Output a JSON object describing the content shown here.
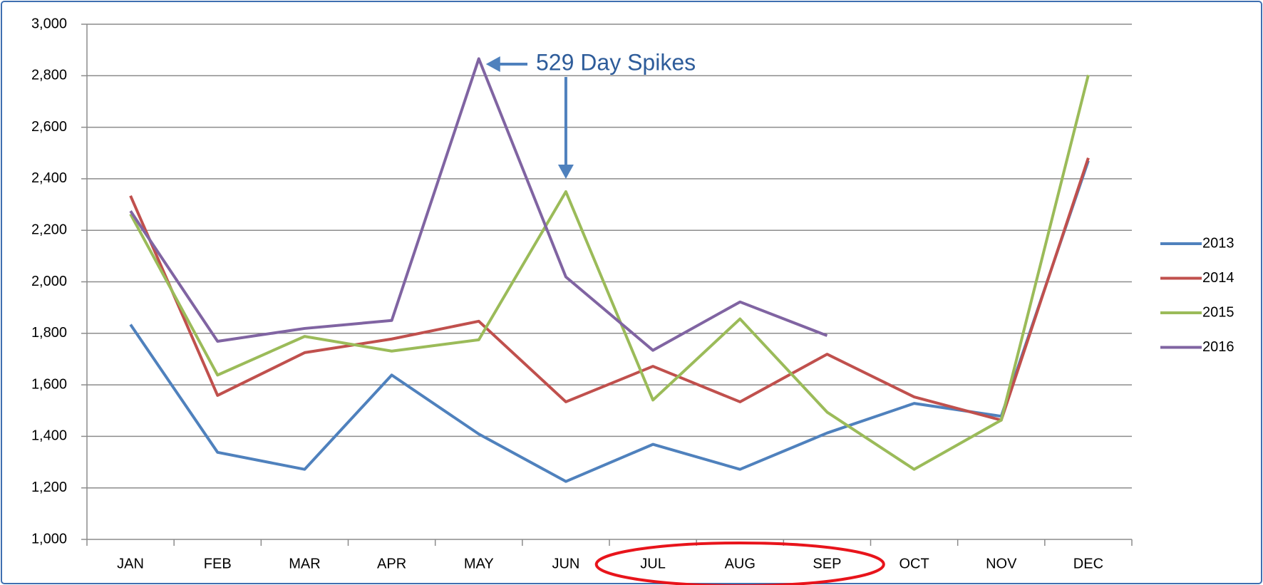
{
  "chart_data": {
    "type": "line",
    "annotation": "529 Day Spikes",
    "categories": [
      "JAN",
      "FEB",
      "MAR",
      "APR",
      "MAY",
      "JUN",
      "JUL",
      "AUG",
      "SEP",
      "OCT",
      "NOV",
      "DEC"
    ],
    "series": [
      {
        "name": "2013",
        "color": "#4f81bd",
        "values": [
          1834,
          1338,
          1272,
          1638,
          1409,
          1225,
          1369,
          1272,
          1413,
          1528,
          1478,
          2470
        ]
      },
      {
        "name": "2014",
        "color": "#c0504d",
        "values": [
          2334,
          1559,
          1725,
          1778,
          1847,
          1534,
          1672,
          1534,
          1719,
          1553,
          1463,
          2481
        ]
      },
      {
        "name": "2015",
        "color": "#9bbb59",
        "values": [
          2263,
          1638,
          1788,
          1731,
          1775,
          2350,
          1541,
          1856,
          1494,
          1272,
          1463,
          2803
        ]
      },
      {
        "name": "2016",
        "color": "#8064a2",
        "values": [
          2275,
          1769,
          1819,
          1850,
          2866,
          2019,
          1734,
          1922,
          1791,
          null,
          null,
          null
        ]
      }
    ],
    "ylim": [
      1000,
      3000
    ],
    "yticks": [
      {
        "value": 1000,
        "label": "1,000"
      },
      {
        "value": 1200,
        "label": "1,200"
      },
      {
        "value": 1400,
        "label": "1,400"
      },
      {
        "value": 1600,
        "label": "1,600"
      },
      {
        "value": 1800,
        "label": "1,800"
      },
      {
        "value": 2000,
        "label": "2,000"
      },
      {
        "value": 2200,
        "label": "2,200"
      },
      {
        "value": 2400,
        "label": "2,400"
      },
      {
        "value": 2600,
        "label": "2,600"
      },
      {
        "value": 2800,
        "label": "2,800"
      },
      {
        "value": 3000,
        "label": "3,000"
      }
    ],
    "grid": true,
    "legend": "right"
  }
}
